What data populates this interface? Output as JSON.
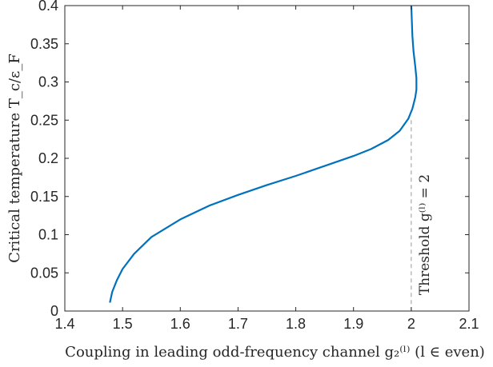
{
  "chart_data": {
    "type": "line",
    "title": "",
    "xlabel": "Coupling in leading odd-frequency channel g₂⁽ˡ⁾ (l ∈ even)",
    "ylabel": "Critical temperature T_c/ε_F",
    "xlim": [
      1.4,
      2.1
    ],
    "ylim": [
      0,
      0.4
    ],
    "xticks": [
      "1.4",
      "1.5",
      "1.6",
      "1.7",
      "1.8",
      "1.9",
      "2",
      "2.1"
    ],
    "yticks": [
      "0",
      "0.05",
      "0.1",
      "0.15",
      "0.2",
      "0.25",
      "0.3",
      "0.35",
      "0.4"
    ],
    "grid": false,
    "series": [
      {
        "color": "#0072BD",
        "x": [
          1.478,
          1.482,
          1.49,
          1.5,
          1.52,
          1.55,
          1.6,
          1.65,
          1.7,
          1.75,
          1.8,
          1.85,
          1.9,
          1.93,
          1.96,
          1.98,
          1.995,
          2.002,
          2.007,
          2.009,
          2.009,
          2.007,
          2.004,
          2.002,
          2.001,
          2.0
        ],
        "y": [
          0.011,
          0.025,
          0.04,
          0.055,
          0.075,
          0.097,
          0.12,
          0.138,
          0.152,
          0.165,
          0.177,
          0.19,
          0.203,
          0.212,
          0.224,
          0.236,
          0.252,
          0.265,
          0.28,
          0.29,
          0.305,
          0.32,
          0.34,
          0.36,
          0.38,
          0.4
        ]
      }
    ],
    "threshold": {
      "x": 2.0,
      "label": "Threshold g⁽ˡ⁾ = 2",
      "color": "#999999"
    }
  }
}
